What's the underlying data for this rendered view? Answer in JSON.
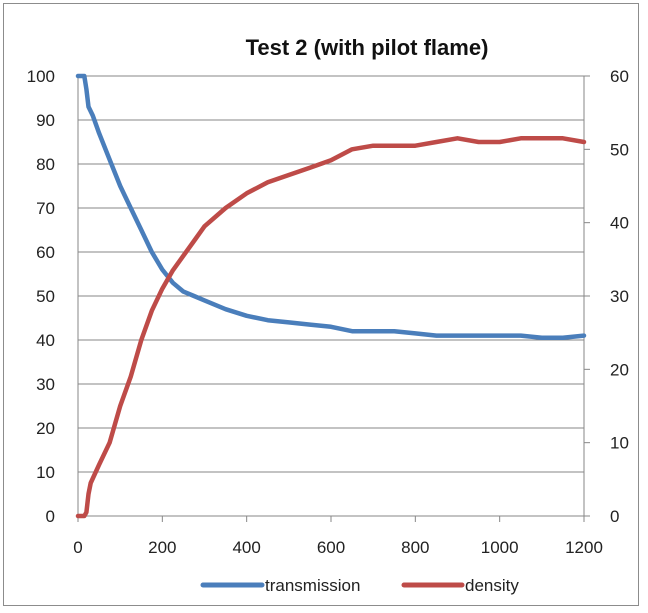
{
  "chart_data": {
    "type": "line",
    "title": "Test 2 (with pilot flame)",
    "xlabel": "",
    "ylabel": "",
    "y2label": "",
    "xlim": [
      0,
      1200
    ],
    "ylim": [
      0,
      100
    ],
    "y2lim": [
      0,
      60
    ],
    "x_ticks": [
      "0",
      "200",
      "400",
      "600",
      "800",
      "1000",
      "1200"
    ],
    "y_ticks": [
      "0",
      "10",
      "20",
      "30",
      "40",
      "50",
      "60",
      "70",
      "80",
      "90",
      "100"
    ],
    "y2_ticks": [
      "0",
      "10",
      "20",
      "30",
      "40",
      "50",
      "60"
    ],
    "grid": true,
    "legend_position": "bottom",
    "series": [
      {
        "name": "transmission",
        "axis": "left",
        "color": "#4a7ebb",
        "x": [
          0,
          15,
          20,
          25,
          35,
          50,
          75,
          100,
          125,
          150,
          175,
          200,
          225,
          250,
          275,
          300,
          350,
          400,
          450,
          500,
          550,
          600,
          650,
          700,
          750,
          800,
          850,
          900,
          950,
          1000,
          1050,
          1100,
          1150,
          1200
        ],
        "values": [
          100,
          100,
          97,
          93,
          91,
          87,
          81,
          75,
          70,
          65,
          60,
          56,
          53,
          51,
          50,
          49,
          47,
          45.5,
          44.5,
          44,
          43.5,
          43,
          42,
          42,
          42,
          41.5,
          41,
          41,
          41,
          41,
          41,
          40.5,
          40.5,
          41
        ]
      },
      {
        "name": "density",
        "axis": "right",
        "color": "#be4b48",
        "x": [
          0,
          15,
          20,
          25,
          30,
          50,
          75,
          100,
          125,
          150,
          175,
          200,
          225,
          250,
          275,
          300,
          350,
          400,
          450,
          500,
          550,
          600,
          650,
          700,
          750,
          800,
          850,
          900,
          950,
          1000,
          1050,
          1100,
          1150,
          1200
        ],
        "values": [
          0,
          0,
          0.5,
          3,
          4.5,
          7,
          10,
          15,
          19,
          24,
          28,
          31,
          33.5,
          35.5,
          37.5,
          39.5,
          42,
          44,
          45.5,
          46.5,
          47.5,
          48.5,
          50,
          50.5,
          50.5,
          50.5,
          51,
          51.5,
          51,
          51,
          51.5,
          51.5,
          51.5,
          51
        ]
      }
    ]
  }
}
